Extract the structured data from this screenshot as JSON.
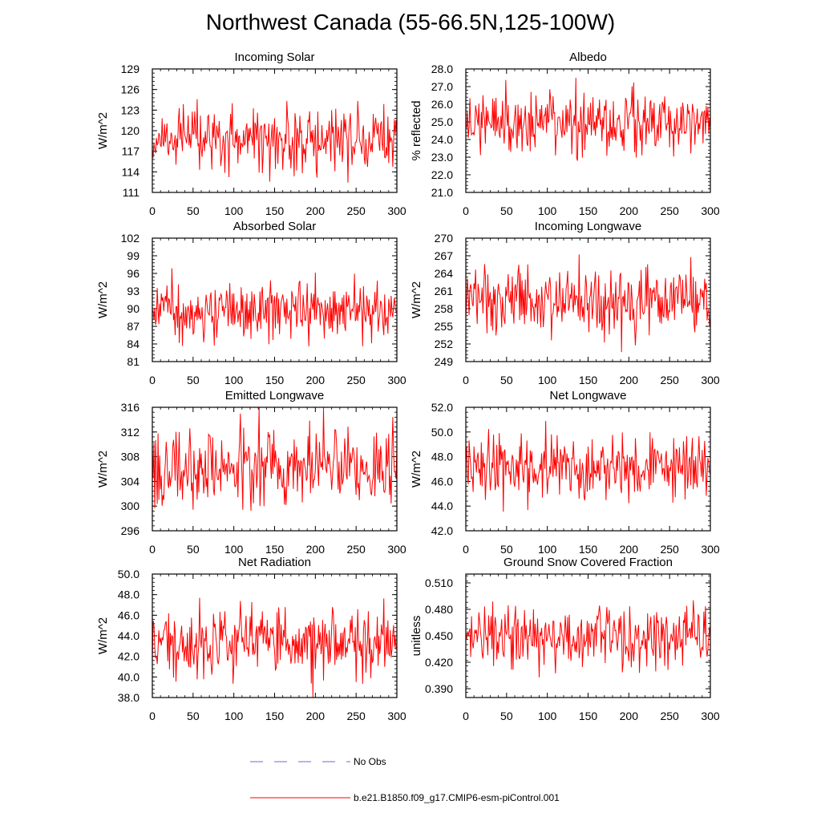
{
  "title": "Northwest Canada (55-66.5N,125-100W)",
  "colors": {
    "model": "#ff0000",
    "obs": "#6a6ad8",
    "axis": "#000000"
  },
  "legend": {
    "obs_label": "No Obs",
    "model_label": "b.e21.B1850.f09_g17.CMIP6-esm-piControl.001"
  },
  "chart_data": [
    {
      "type": "line",
      "title": "Incoming Solar",
      "ylabel": "W/m^2",
      "xlim": [
        0,
        300
      ],
      "xticks": [
        "0",
        "50",
        "100",
        "150",
        "200",
        "250",
        "300"
      ],
      "ylim": [
        111,
        129
      ],
      "yticks": [
        "111",
        "114",
        "117",
        "120",
        "123",
        "126",
        "129"
      ],
      "series": [
        {
          "name": "b.e21.B1850.f09_g17.CMIP6-esm-piControl.001",
          "mean": 118.8,
          "sd": 2.3,
          "min": 112.0,
          "max": 127.8,
          "n": 300
        }
      ]
    },
    {
      "type": "line",
      "title": "Albedo",
      "ylabel": "% reflected",
      "xlim": [
        0,
        300
      ],
      "xticks": [
        "0",
        "50",
        "100",
        "150",
        "200",
        "250",
        "300"
      ],
      "ylim": [
        21.0,
        28.0
      ],
      "yticks": [
        "21.0",
        "22.0",
        "23.0",
        "24.0",
        "25.0",
        "26.0",
        "27.0",
        "28.0"
      ],
      "series": [
        {
          "name": "b.e21.B1850.f09_g17.CMIP6-esm-piControl.001",
          "mean": 24.9,
          "sd": 0.8,
          "min": 21.9,
          "max": 27.8,
          "n": 300
        }
      ]
    },
    {
      "type": "line",
      "title": "Absorbed Solar",
      "ylabel": "W/m^2",
      "xlim": [
        0,
        300
      ],
      "xticks": [
        "0",
        "50",
        "100",
        "150",
        "200",
        "250",
        "300"
      ],
      "ylim": [
        81,
        102
      ],
      "yticks": [
        "81",
        "84",
        "87",
        "90",
        "93",
        "96",
        "99",
        "102"
      ],
      "series": [
        {
          "name": "b.e21.B1850.f09_g17.CMIP6-esm-piControl.001",
          "mean": 89.9,
          "sd": 2.3,
          "min": 83.6,
          "max": 99.6,
          "n": 300
        }
      ]
    },
    {
      "type": "line",
      "title": "Incoming Longwave",
      "ylabel": "W/m^2",
      "xlim": [
        0,
        300
      ],
      "xticks": [
        "0",
        "50",
        "100",
        "150",
        "200",
        "250",
        "300"
      ],
      "ylim": [
        249,
        270
      ],
      "yticks": [
        "249",
        "252",
        "255",
        "258",
        "261",
        "264",
        "267",
        "270"
      ],
      "series": [
        {
          "name": "b.e21.B1850.f09_g17.CMIP6-esm-piControl.001",
          "mean": 259.3,
          "sd": 2.8,
          "min": 250.3,
          "max": 269.2,
          "n": 300
        }
      ]
    },
    {
      "type": "line",
      "title": "Emitted Longwave",
      "ylabel": "W/m^2",
      "xlim": [
        0,
        300
      ],
      "xticks": [
        "0",
        "50",
        "100",
        "150",
        "200",
        "250",
        "300"
      ],
      "ylim": [
        296,
        316
      ],
      "yticks": [
        "296",
        "300",
        "304",
        "308",
        "312",
        "316"
      ],
      "series": [
        {
          "name": "b.e21.B1850.f09_g17.CMIP6-esm-piControl.001",
          "mean": 306.3,
          "sd": 3.2,
          "min": 296.5,
          "max": 316.0,
          "n": 300
        }
      ]
    },
    {
      "type": "line",
      "title": "Net Longwave",
      "ylabel": "W/m^2",
      "xlim": [
        0,
        300
      ],
      "xticks": [
        "0",
        "50",
        "100",
        "150",
        "200",
        "250",
        "300"
      ],
      "ylim": [
        42.0,
        52.0
      ],
      "yticks": [
        "42.0",
        "44.0",
        "46.0",
        "48.0",
        "50.0",
        "52.0"
      ],
      "series": [
        {
          "name": "b.e21.B1850.f09_g17.CMIP6-esm-piControl.001",
          "mean": 47.1,
          "sd": 1.3,
          "min": 42.9,
          "max": 51.8,
          "n": 300
        }
      ]
    },
    {
      "type": "line",
      "title": "Net Radiation",
      "ylabel": "W/m^2",
      "xlim": [
        0,
        300
      ],
      "xticks": [
        "0",
        "50",
        "100",
        "150",
        "200",
        "250",
        "300"
      ],
      "ylim": [
        38.0,
        50.0
      ],
      "yticks": [
        "38.0",
        "40.0",
        "42.0",
        "44.0",
        "46.0",
        "48.0",
        "50.0"
      ],
      "series": [
        {
          "name": "b.e21.B1850.f09_g17.CMIP6-esm-piControl.001",
          "mean": 43.4,
          "sd": 1.6,
          "min": 38.0,
          "max": 48.4,
          "n": 300
        }
      ]
    },
    {
      "type": "line",
      "title": "Ground Snow Covered Fraction",
      "ylabel": "unitless",
      "xlim": [
        0,
        300
      ],
      "xticks": [
        "0",
        "50",
        "100",
        "150",
        "200",
        "250",
        "300"
      ],
      "ylim": [
        0.38,
        0.52
      ],
      "yticks": [
        "0.390",
        "0.420",
        "0.450",
        "0.480",
        "0.510"
      ],
      "series": [
        {
          "name": "b.e21.B1850.f09_g17.CMIP6-esm-piControl.001",
          "mean": 0.449,
          "sd": 0.018,
          "min": 0.397,
          "max": 0.501,
          "n": 300
        }
      ]
    }
  ]
}
